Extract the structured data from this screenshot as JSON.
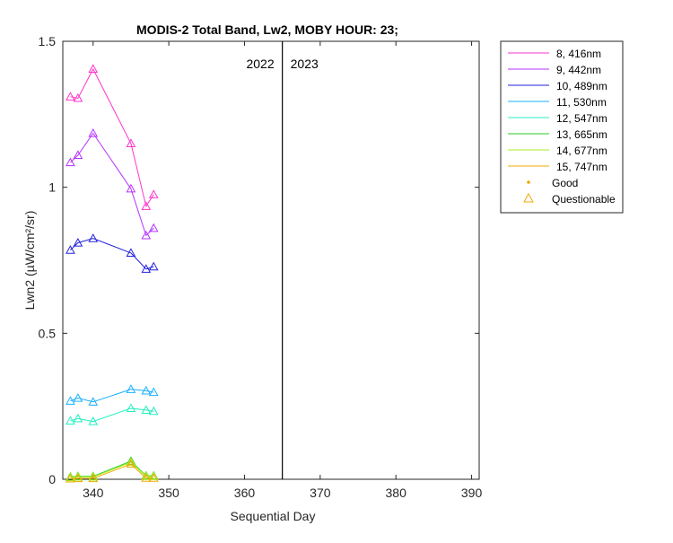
{
  "chart_data": {
    "type": "line",
    "title": "MODIS-2 Total Band, Lw2, MOBY HOUR: 23;",
    "xlabel": "Sequential Day",
    "ylabel": "Lwn2 (µW/cm²/sr)",
    "xlim": [
      336,
      391
    ],
    "ylim": [
      0,
      1.5
    ],
    "xticks": [
      340,
      350,
      360,
      370,
      380,
      390
    ],
    "yticks": [
      0,
      0.5,
      1,
      1.5
    ],
    "ytick_labels": [
      "0",
      "0.5",
      "1",
      "1.5"
    ],
    "grid": false,
    "legend_placement": "outside-top-right",
    "year_divider": {
      "x": 365,
      "left_label": "2022",
      "right_label": "2023"
    },
    "x": [
      337,
      338,
      340,
      345,
      347,
      348
    ],
    "marker": "triangle (Questionable)",
    "series": [
      {
        "name": "8, 416nm",
        "color": "#ff33cc",
        "values": [
          1.31,
          1.305,
          1.405,
          1.15,
          0.935,
          0.975
        ]
      },
      {
        "name": "9, 442nm",
        "color": "#b533ff",
        "values": [
          1.085,
          1.11,
          1.185,
          0.995,
          0.835,
          0.86
        ]
      },
      {
        "name": "10, 489nm",
        "color": "#2222dd",
        "values": [
          0.785,
          0.81,
          0.825,
          0.775,
          0.72,
          0.728
        ]
      },
      {
        "name": "11, 530nm",
        "color": "#19b0ff",
        "values": [
          0.268,
          0.278,
          0.265,
          0.308,
          0.303,
          0.298
        ]
      },
      {
        "name": "12, 547nm",
        "color": "#22f0c0",
        "values": [
          0.2,
          0.208,
          0.198,
          0.243,
          0.237,
          0.233
        ]
      },
      {
        "name": "13, 665nm",
        "color": "#22cc22",
        "values": [
          0.008,
          0.01,
          0.01,
          0.062,
          0.012,
          0.012
        ]
      },
      {
        "name": "14, 677nm",
        "color": "#aaee22",
        "values": [
          0.006,
          0.008,
          0.008,
          0.058,
          0.01,
          0.01
        ]
      },
      {
        "name": "15, 747nm",
        "color": "#eeaa00",
        "values": [
          0.002,
          0.003,
          0.003,
          0.052,
          0.004,
          0.004
        ]
      }
    ],
    "legend_extra": [
      {
        "label": "Good",
        "color": "#eeaa00",
        "symbol": "dot"
      },
      {
        "label": "Questionable",
        "color": "#eeaa00",
        "symbol": "triangle"
      }
    ]
  }
}
